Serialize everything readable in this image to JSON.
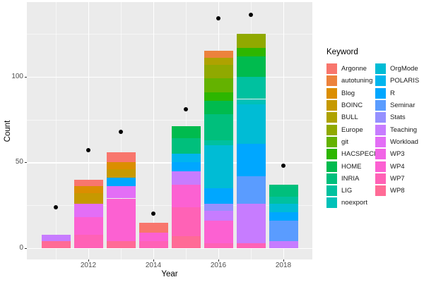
{
  "legend": {
    "title": "Keyword",
    "columns": [
      [
        "Argonne",
        "autotuning",
        "Blog",
        "BOINC",
        "BULL",
        "Europe",
        "git",
        "HACSPECIS",
        "HOME",
        "INRIA",
        "LIG",
        "noexport"
      ],
      [
        "OrgMode",
        "POLARIS",
        "R",
        "Seminar",
        "Stats",
        "Teaching",
        "Workload",
        "WP3",
        "WP4",
        "WP7",
        "WP8"
      ]
    ]
  },
  "palette": {
    "Argonne": "#F8766D",
    "autotuning": "#EC823C",
    "Blog": "#DB8E00",
    "BOINC": "#C69900",
    "BULL": "#AEA200",
    "Europe": "#90A900",
    "git": "#64B200",
    "HACSPECIS": "#2DB600",
    "HOME": "#00BB4E",
    "INRIA": "#00BF7C",
    "LIG": "#00C19F",
    "noexport": "#00C1B8",
    "OrgMode": "#00BCD5",
    "POLARIS": "#00B5EE",
    "R": "#00A7FF",
    "Seminar": "#5A9CFF",
    "Stats": "#9590FF",
    "Teaching": "#C77CFF",
    "Workload": "#E36EF6",
    "WP3": "#F165E6",
    "WP4": "#FC61D2",
    "WP7": "#FF62B6",
    "WP8": "#FF6B96"
  },
  "panel_colors": {
    "background": "#EBEBEB",
    "gridline": "#FFFFFF",
    "tick": "#333333",
    "tick_text": "#4D4D4D",
    "point": "#000000"
  },
  "chart_data": {
    "type": "bar",
    "subtype": "stacked-with-points",
    "title": "",
    "xlabel": "Year",
    "ylabel": "Count",
    "ylim": [
      -7,
      143
    ],
    "y_major_ticks": [
      0,
      50,
      100
    ],
    "y_minor_gridlines": [
      25,
      75,
      125
    ],
    "x_major_ticks": [
      2012,
      2014,
      2016,
      2018
    ],
    "x_minor_gridlines": [
      2011,
      2013,
      2015,
      2017
    ],
    "legend_position": "right",
    "stack_order_note": "segments listed bottom-to-top; stack order is reverse of legend order",
    "bars": [
      {
        "year": 2011,
        "total": 8,
        "segments": [
          {
            "keyword": "WP8",
            "value": 4
          },
          {
            "keyword": "Teaching",
            "value": 4
          }
        ]
      },
      {
        "year": 2012,
        "total": 40,
        "segments": [
          {
            "keyword": "WP7",
            "value": 8
          },
          {
            "keyword": "WP4",
            "value": 10
          },
          {
            "keyword": "Workload",
            "value": 8
          },
          {
            "keyword": "BOINC",
            "value": 6
          },
          {
            "keyword": "Blog",
            "value": 4
          },
          {
            "keyword": "Argonne",
            "value": 4
          }
        ]
      },
      {
        "year": 2013,
        "total": 56,
        "segments": [
          {
            "keyword": "WP8",
            "value": 4
          },
          {
            "keyword": "WP4",
            "value": 25
          },
          {
            "keyword": "Workload",
            "value": 7
          },
          {
            "keyword": "R",
            "value": 5
          },
          {
            "keyword": "BOINC",
            "value": 5
          },
          {
            "keyword": "Blog",
            "value": 4
          },
          {
            "keyword": "Argonne",
            "value": 6
          }
        ]
      },
      {
        "year": 2014,
        "total": 15,
        "segments": [
          {
            "keyword": "WP7",
            "value": 4
          },
          {
            "keyword": "WP4",
            "value": 5
          },
          {
            "keyword": "Argonne",
            "value": 6
          }
        ]
      },
      {
        "year": 2015,
        "total": 71,
        "segments": [
          {
            "keyword": "WP8",
            "value": 7
          },
          {
            "keyword": "WP7",
            "value": 17
          },
          {
            "keyword": "WP4",
            "value": 13
          },
          {
            "keyword": "Teaching",
            "value": 8
          },
          {
            "keyword": "R",
            "value": 5
          },
          {
            "keyword": "POLARIS",
            "value": 5
          },
          {
            "keyword": "INRIA",
            "value": 9
          },
          {
            "keyword": "HOME",
            "value": 7
          }
        ]
      },
      {
        "year": 2016,
        "total": 115,
        "segments": [
          {
            "keyword": "WP7",
            "value": 3
          },
          {
            "keyword": "WP4",
            "value": 13
          },
          {
            "keyword": "Teaching",
            "value": 6
          },
          {
            "keyword": "Stats",
            "value": 4
          },
          {
            "keyword": "R",
            "value": 9
          },
          {
            "keyword": "OrgMode",
            "value": 25
          },
          {
            "keyword": "LIG",
            "value": 3
          },
          {
            "keyword": "INRIA",
            "value": 15
          },
          {
            "keyword": "HOME",
            "value": 8
          },
          {
            "keyword": "HACSPECIS",
            "value": 5
          },
          {
            "keyword": "git",
            "value": 8
          },
          {
            "keyword": "Europe",
            "value": 8
          },
          {
            "keyword": "BULL",
            "value": 4
          },
          {
            "keyword": "autotuning",
            "value": 4
          }
        ]
      },
      {
        "year": 2017,
        "total": 125,
        "segments": [
          {
            "keyword": "WP7",
            "value": 3
          },
          {
            "keyword": "Teaching",
            "value": 23
          },
          {
            "keyword": "Seminar",
            "value": 16
          },
          {
            "keyword": "R",
            "value": 19
          },
          {
            "keyword": "OrgMode",
            "value": 23
          },
          {
            "keyword": "noexport",
            "value": 3
          },
          {
            "keyword": "LIG",
            "value": 13
          },
          {
            "keyword": "HOME",
            "value": 12
          },
          {
            "keyword": "HACSPECIS",
            "value": 5
          },
          {
            "keyword": "Europe",
            "value": 8
          }
        ]
      },
      {
        "year": 2018,
        "total": 37,
        "segments": [
          {
            "keyword": "Teaching",
            "value": 4
          },
          {
            "keyword": "Seminar",
            "value": 12
          },
          {
            "keyword": "R",
            "value": 5
          },
          {
            "keyword": "OrgMode",
            "value": 5
          },
          {
            "keyword": "LIG",
            "value": 4
          },
          {
            "keyword": "INRIA",
            "value": 7
          }
        ]
      }
    ],
    "points": [
      {
        "year": 2011,
        "value": 24
      },
      {
        "year": 2012,
        "value": 57
      },
      {
        "year": 2013,
        "value": 68
      },
      {
        "year": 2014,
        "value": 20
      },
      {
        "year": 2015,
        "value": 81
      },
      {
        "year": 2016,
        "value": 134
      },
      {
        "year": 2017,
        "value": 136
      },
      {
        "year": 2018,
        "value": 48
      }
    ]
  }
}
